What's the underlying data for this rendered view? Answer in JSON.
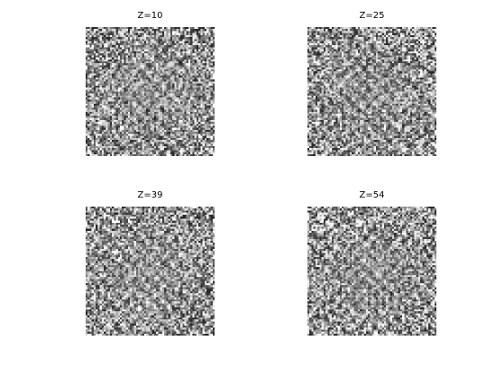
{
  "figure": {
    "panels": [
      {
        "title": "Z=10",
        "pattern": "grayscale-noise-slice"
      },
      {
        "title": "Z=25",
        "pattern": "grayscale-noise-slice"
      },
      {
        "title": "Z=39",
        "pattern": "grayscale-noise-slice"
      },
      {
        "title": "Z=54",
        "pattern": "grayscale-noise-slice"
      }
    ],
    "colormap": "gray"
  }
}
